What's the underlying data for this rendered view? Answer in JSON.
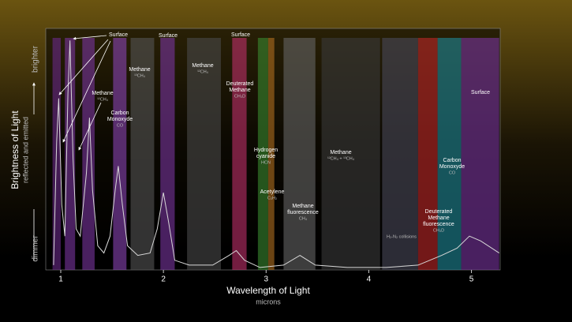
{
  "chart_data": {
    "type": "line",
    "xlabel": "Wavelength of Light",
    "xlabel_sub": "microns",
    "ylabel": "Brightness of Light",
    "ylabel_sub": "reflected and emitted",
    "y_high": "brighter",
    "y_low": "dimmer",
    "xlim": [
      0.854,
      5.28
    ],
    "ylim": [
      0,
      1
    ],
    "xticks": [
      1,
      2,
      3,
      4,
      5
    ],
    "line_color": "#d8d8d8",
    "x": [
      0.93,
      0.96,
      0.98,
      1.01,
      1.04,
      1.07,
      1.09,
      1.12,
      1.15,
      1.19,
      1.25,
      1.28,
      1.31,
      1.36,
      1.42,
      1.48,
      1.53,
      1.56,
      1.6,
      1.65,
      1.75,
      1.87,
      1.94,
      2.0,
      2.05,
      2.11,
      2.25,
      2.48,
      2.64,
      2.71,
      2.79,
      2.94,
      3.17,
      3.33,
      3.48,
      3.79,
      4.17,
      4.48,
      4.71,
      4.86,
      4.98,
      5.09,
      5.27
    ],
    "values": [
      0.02,
      0.53,
      0.71,
      0.27,
      0.14,
      0.73,
      0.95,
      0.46,
      0.17,
      0.14,
      0.4,
      0.63,
      0.33,
      0.1,
      0.07,
      0.14,
      0.33,
      0.43,
      0.27,
      0.1,
      0.06,
      0.07,
      0.17,
      0.32,
      0.2,
      0.04,
      0.02,
      0.02,
      0.06,
      0.08,
      0.04,
      0.01,
      0.02,
      0.06,
      0.02,
      0.01,
      0.01,
      0.02,
      0.06,
      0.09,
      0.14,
      0.12,
      0.07
    ],
    "bands": [
      {
        "x": [
          0.92,
          1.0
        ],
        "color": "#6a2a8a"
      },
      {
        "x": [
          1.04,
          1.14
        ],
        "color": "#7a35a0"
      },
      {
        "x": [
          1.21,
          1.33
        ],
        "color": "#7a35a0"
      },
      {
        "x": [
          1.51,
          1.64
        ],
        "color": "#8a45b5"
      },
      {
        "x": [
          1.68,
          1.91
        ],
        "color": "#555555"
      },
      {
        "x": [
          1.97,
          2.11
        ],
        "color": "#7a35a0"
      },
      {
        "x": [
          2.23,
          2.56
        ],
        "color": "#4a4a4a"
      },
      {
        "x": [
          2.67,
          2.81
        ],
        "color": "#c0306a"
      },
      {
        "x": [
          2.92,
          3.02
        ],
        "color": "#3a8a30"
      },
      {
        "x": [
          3.02,
          3.08
        ],
        "color": "#b07020"
      },
      {
        "x": [
          3.17,
          3.48
        ],
        "color": "#666666"
      },
      {
        "x": [
          3.54,
          4.11
        ],
        "color": "#3a3a3a"
      },
      {
        "x": [
          4.13,
          4.48
        ],
        "color": "#4a4a5a"
      },
      {
        "x": [
          4.48,
          4.67
        ],
        "color": "#c02828"
      },
      {
        "x": [
          4.67,
          4.9
        ],
        "color": "#1f8a9a"
      },
      {
        "x": [
          4.9,
          5.27
        ],
        "color": "#7a35a0"
      }
    ],
    "annotations": [
      {
        "lines": [
          "Surface"
        ]
      },
      {
        "lines": [
          "Surface"
        ]
      },
      {
        "lines": [
          "Surface"
        ]
      },
      {
        "lines": [
          "Methane"
        ],
        "sub": "¹³CH₄"
      },
      {
        "lines": [
          "Methane"
        ],
        "sub": "¹²CH₄"
      },
      {
        "lines": [
          "Methane"
        ],
        "sub": "¹²CH₄"
      },
      {
        "lines": [
          "Carbon",
          "Monoxyde"
        ],
        "sub": "CO"
      },
      {
        "lines": [
          "Deuterated",
          "Methane"
        ],
        "sub": "CH₃D"
      },
      {
        "lines": [
          "Hydrogen",
          "cyanide"
        ],
        "sub": "HCN"
      },
      {
        "lines": [
          "Acetylene"
        ],
        "sub": "C₂H₂"
      },
      {
        "lines": [
          "Methane",
          "fluorescence"
        ],
        "sub": "CH₄"
      },
      {
        "lines": [
          "Methane"
        ],
        "sub": "¹²CH₄ + ¹³CH₄"
      },
      {
        "lines": [],
        "sub": "H₂-N₂ collisions"
      },
      {
        "lines": [
          "Deuterated",
          "Methane",
          "fluorescence"
        ],
        "sub": "CH₃D"
      },
      {
        "lines": [
          "Carbon",
          "Monoxyde"
        ],
        "sub": "CO"
      },
      {
        "lines": [
          "Surface"
        ]
      }
    ]
  }
}
